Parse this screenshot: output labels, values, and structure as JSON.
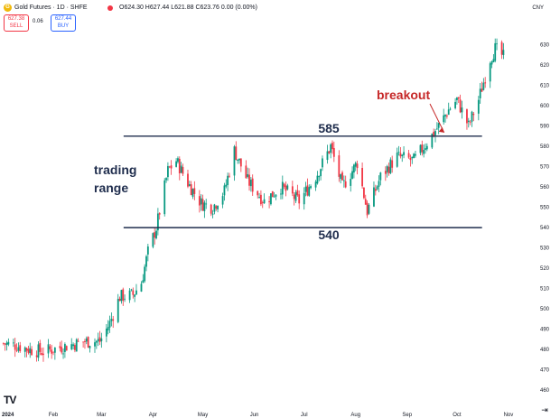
{
  "header": {
    "symbol_title": "Gold Futures · 1D · SHFE",
    "ohlc": "O624.30 H627.44 L621.88 C623.76 0.00 (0.00%)",
    "sell_price": "627.38",
    "sell_label": "SELL",
    "spread": "0.06",
    "buy_price": "627.44",
    "buy_label": "BUY",
    "currency": "CNY"
  },
  "chart_data": {
    "type": "candlestick",
    "title": "",
    "xlabel": "",
    "ylabel": "",
    "ylim": [
      453,
      636
    ],
    "y_ticks": [
      460,
      470,
      480,
      490,
      500,
      510,
      520,
      530,
      540,
      550,
      560,
      570,
      580,
      590,
      600,
      610,
      620,
      630
    ],
    "x_ticks": [
      {
        "label": "2024",
        "date": "2024-01-01"
      },
      {
        "label": "Feb",
        "date": "2024-02-01"
      },
      {
        "label": "Mar",
        "date": "2024-03-01"
      },
      {
        "label": "Apr",
        "date": "2024-04-01"
      },
      {
        "label": "May",
        "date": "2024-05-01"
      },
      {
        "label": "Jun",
        "date": "2024-06-01"
      },
      {
        "label": "Jul",
        "date": "2024-07-01"
      },
      {
        "label": "Aug",
        "date": "2024-08-01"
      },
      {
        "label": "Sep",
        "date": "2024-09-01"
      },
      {
        "label": "Oct",
        "date": "2024-10-01"
      },
      {
        "label": "Nov",
        "date": "2024-11-01"
      }
    ],
    "close_path": [
      [
        "2024-01-02",
        483
      ],
      [
        "2024-01-10",
        482
      ],
      [
        "2024-01-18",
        480
      ],
      [
        "2024-01-26",
        479
      ],
      [
        "2024-02-05",
        481
      ],
      [
        "2024-02-20",
        484
      ],
      [
        "2024-02-29",
        484
      ],
      [
        "2024-03-06",
        493
      ],
      [
        "2024-03-12",
        506
      ],
      [
        "2024-03-20",
        507
      ],
      [
        "2024-03-25",
        513
      ],
      [
        "2024-03-29",
        528
      ],
      [
        "2024-04-03",
        540
      ],
      [
        "2024-04-10",
        568
      ],
      [
        "2024-04-15",
        573
      ],
      [
        "2024-04-22",
        562
      ],
      [
        "2024-04-30",
        552
      ],
      [
        "2024-05-07",
        550
      ],
      [
        "2024-05-14",
        558
      ],
      [
        "2024-05-20",
        578
      ],
      [
        "2024-05-28",
        563
      ],
      [
        "2024-06-07",
        553
      ],
      [
        "2024-06-17",
        560
      ],
      [
        "2024-06-28",
        553
      ],
      [
        "2024-07-08",
        565
      ],
      [
        "2024-07-17",
        580
      ],
      [
        "2024-07-24",
        560
      ],
      [
        "2024-08-02",
        572
      ],
      [
        "2024-08-08",
        548
      ],
      [
        "2024-08-16",
        565
      ],
      [
        "2024-08-26",
        575
      ],
      [
        "2024-09-05",
        573
      ],
      [
        "2024-09-13",
        582
      ],
      [
        "2024-09-20",
        590
      ],
      [
        "2024-09-26",
        598
      ],
      [
        "2024-10-01",
        603
      ],
      [
        "2024-10-08",
        590
      ],
      [
        "2024-10-14",
        603
      ],
      [
        "2024-10-21",
        623
      ],
      [
        "2024-10-24",
        628
      ],
      [
        "2024-10-29",
        624
      ]
    ],
    "range_lines": [
      {
        "value": 585,
        "label": "585",
        "from": "2024-03-29",
        "to": "2024-10-15"
      },
      {
        "value": 540,
        "label": "540",
        "from": "2024-03-29",
        "to": "2024-10-15"
      }
    ],
    "annotations": {
      "range_label_line1": "trading",
      "range_label_line2": "range",
      "breakout_label": "breakout",
      "breakout_date": "2024-09-26",
      "breakout_value": 585
    },
    "colors": {
      "up": "#089981",
      "down": "#f23645",
      "range_line": "#1f2d4d",
      "annotation_text": "#1f2d4d",
      "breakout_text": "#c62828"
    }
  },
  "footer": {
    "tv_logo": "TV",
    "goto_icon": "goto-realtime-icon"
  }
}
